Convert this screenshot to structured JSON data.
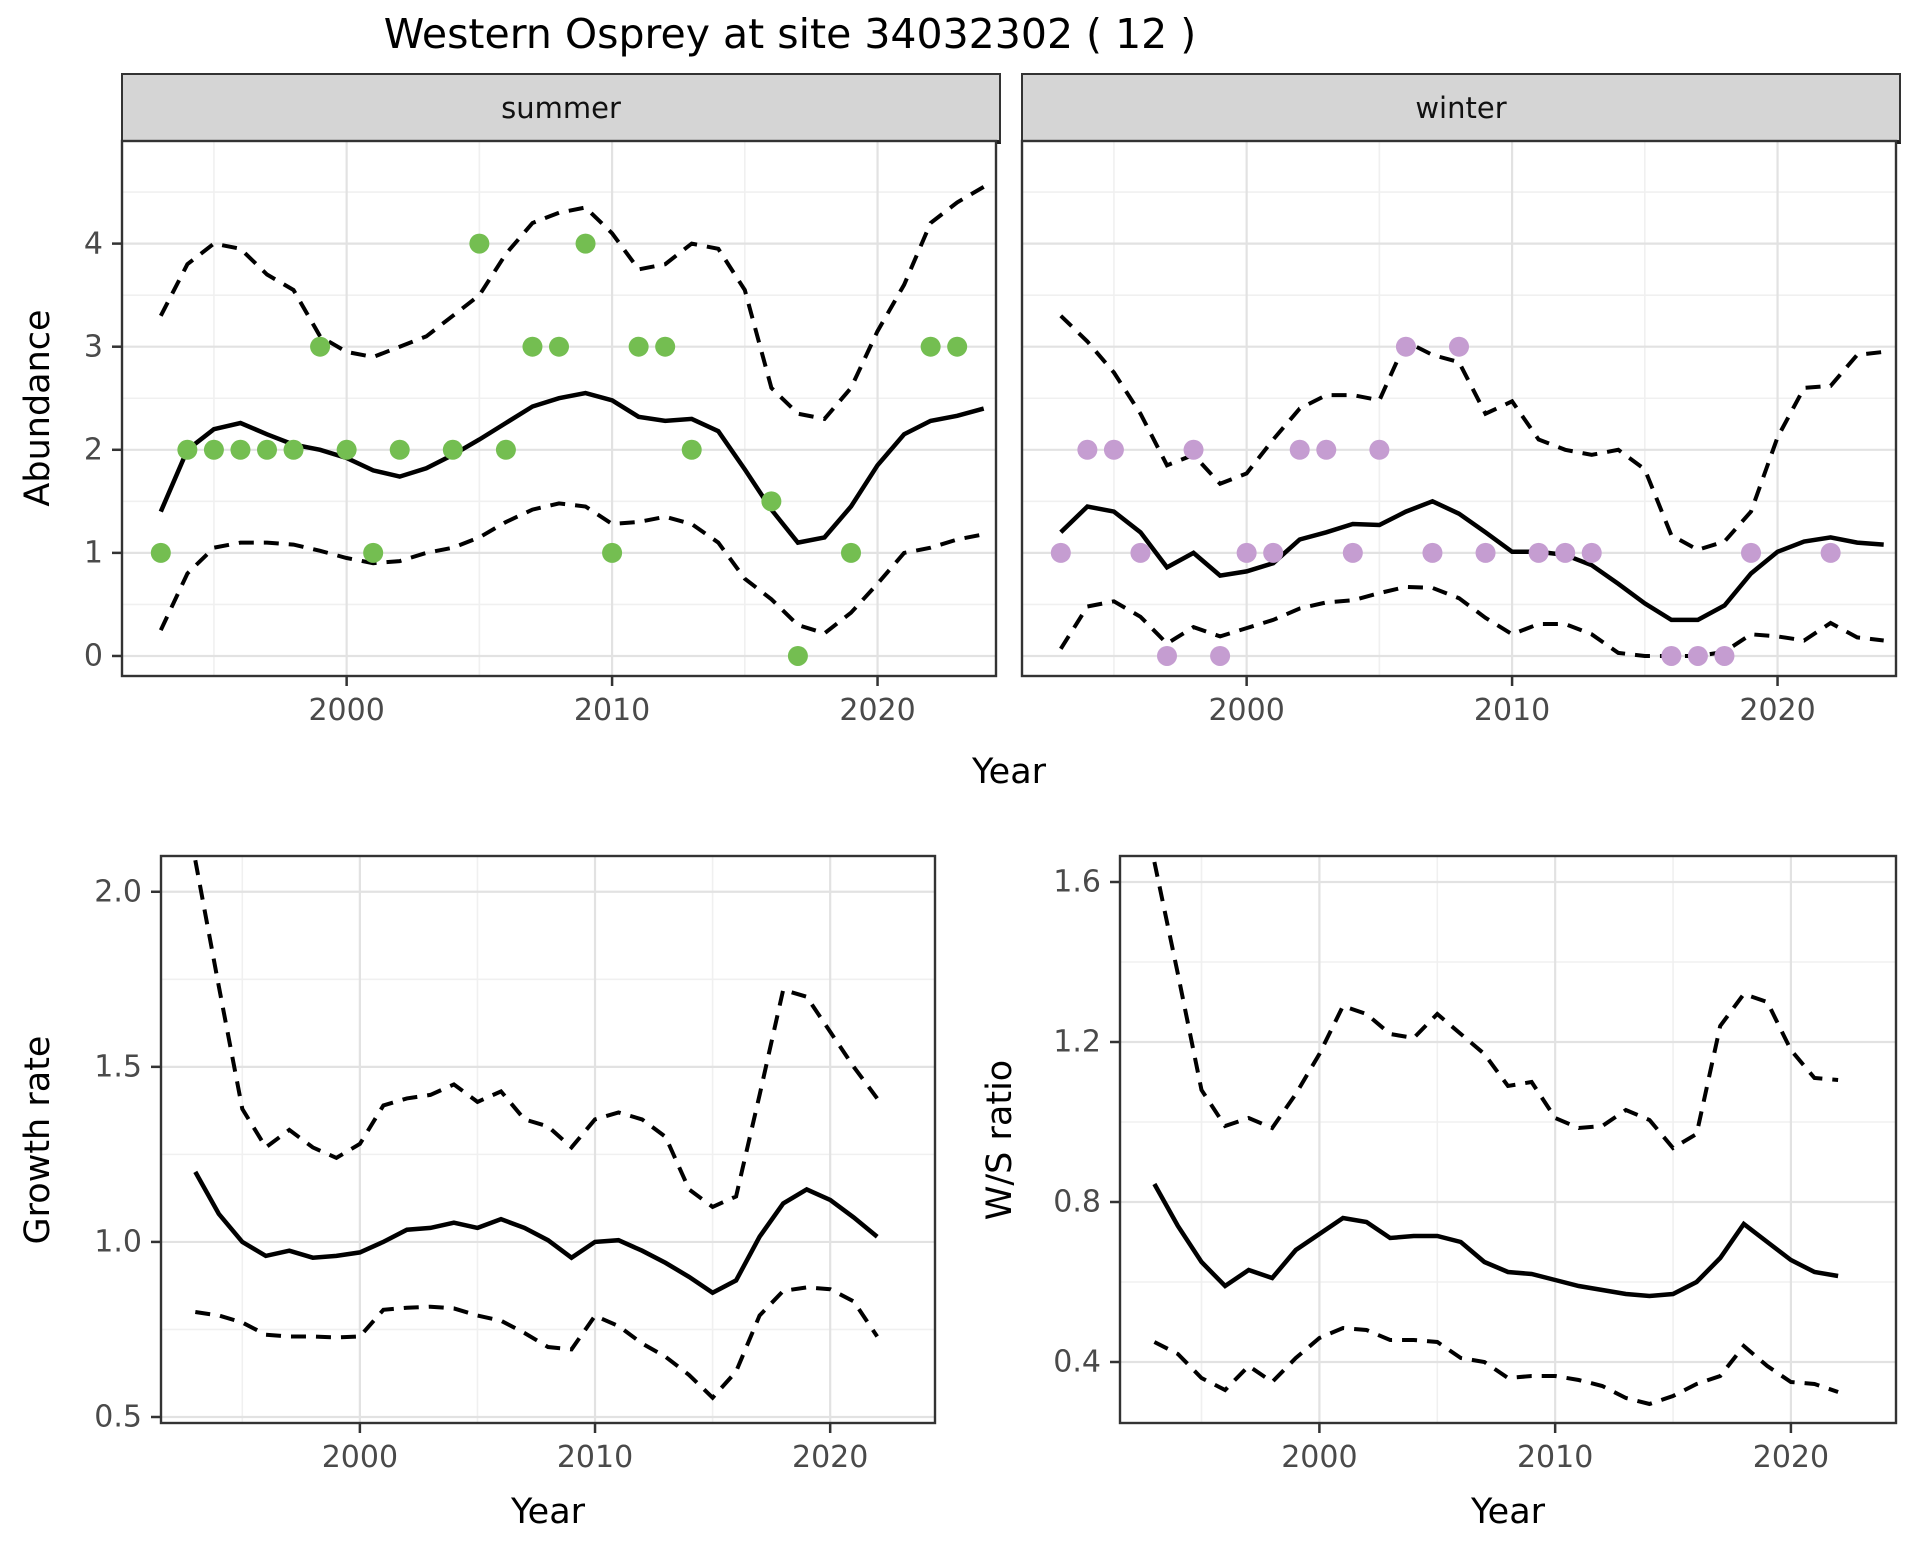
{
  "title": "Western Osprey at site 34032302 ( 12 )",
  "axis_titles": {
    "abundance": "Abundance",
    "year": "Year",
    "growth": "Growth rate",
    "ws": "W/S ratio"
  },
  "facets": {
    "summer_label": "summer",
    "winter_label": "winter"
  },
  "colors": {
    "summer_dot": "#74be51",
    "winter_dot": "#c59dd1",
    "line": "#000000",
    "strip_bg": "#d5d5d5",
    "panel_border": "#333333",
    "grid_major": "#e2e2e2",
    "grid_minor": "#f0f0f0",
    "tick_text": "#4a4a4a"
  },
  "legend": "none",
  "chart_data": [
    {
      "id": "abundance-summer",
      "type": "line",
      "facet_label": "summer",
      "ylabel": "Abundance",
      "xlabel": "Year",
      "xlim": [
        1991.5,
        2024.5
      ],
      "ylim": [
        -0.204,
        5.005
      ],
      "xticks": [
        2000,
        2010,
        2020
      ],
      "xtick_labels": [
        "2000",
        "2010",
        "2020"
      ],
      "xminor": [
        1995,
        2005,
        2015
      ],
      "yticks": [
        0,
        1,
        2,
        3,
        4
      ],
      "ytick_labels": [
        "0",
        "1",
        "2",
        "3",
        "4"
      ],
      "yminor": [
        0.5,
        1.5,
        2.5,
        3.5,
        4.5
      ],
      "grid": true,
      "x": [
        1993,
        1994,
        1995,
        1996,
        1997,
        1998,
        1999,
        2000,
        2001,
        2002,
        2003,
        2004,
        2005,
        2006,
        2007,
        2008,
        2009,
        2010,
        2011,
        2012,
        2013,
        2014,
        2015,
        2016,
        2017,
        2018,
        2019,
        2020,
        2021,
        2022,
        2023,
        2024
      ],
      "series": [
        {
          "name": "mean",
          "style": "solid",
          "values": [
            1.4,
            2.0,
            2.2,
            2.26,
            2.15,
            2.05,
            2.0,
            1.92,
            1.8,
            1.74,
            1.82,
            1.95,
            2.1,
            2.26,
            2.42,
            2.5,
            2.55,
            2.48,
            2.32,
            2.28,
            2.3,
            2.18,
            1.81,
            1.42,
            1.1,
            1.15,
            1.45,
            1.85,
            2.15,
            2.28,
            2.33,
            2.4
          ]
        },
        {
          "name": "upper_ci",
          "style": "dashed",
          "values": [
            3.3,
            3.8,
            4.0,
            3.95,
            3.7,
            3.55,
            3.1,
            2.95,
            2.9,
            3.0,
            3.1,
            3.3,
            3.5,
            3.9,
            4.2,
            4.3,
            4.35,
            4.1,
            3.75,
            3.8,
            4.0,
            3.95,
            3.55,
            2.6,
            2.35,
            2.3,
            2.6,
            3.15,
            3.6,
            4.2,
            4.4,
            4.55
          ]
        },
        {
          "name": "lower_ci",
          "style": "dashed",
          "values": [
            0.25,
            0.8,
            1.05,
            1.1,
            1.1,
            1.08,
            1.02,
            0.95,
            0.9,
            0.92,
            1.0,
            1.05,
            1.15,
            1.3,
            1.42,
            1.48,
            1.45,
            1.28,
            1.3,
            1.35,
            1.28,
            1.1,
            0.75,
            0.55,
            0.3,
            0.22,
            0.42,
            0.7,
            1.0,
            1.05,
            1.13,
            1.18
          ]
        }
      ],
      "points": {
        "name": "summer-observations",
        "color_key": "summer_dot",
        "x": [
          1993,
          1994,
          1995,
          1996,
          1997,
          1998,
          1999,
          2000,
          2001,
          2002,
          2004,
          2005,
          2006,
          2007,
          2008,
          2009,
          2010,
          2011,
          2012,
          2013,
          2016,
          2017,
          2019,
          2022,
          2023
        ],
        "y": [
          1,
          2,
          2,
          2,
          2,
          2,
          3,
          2,
          1,
          2,
          2,
          4,
          2,
          3,
          3,
          4,
          1,
          3,
          3,
          2,
          1.5,
          0,
          1,
          3,
          3
        ]
      }
    },
    {
      "id": "abundance-winter",
      "type": "line",
      "facet_label": "winter",
      "ylabel": "Abundance",
      "xlabel": "Year",
      "xlim": [
        1991.5,
        2024.5
      ],
      "ylim": [
        -0.204,
        5.005
      ],
      "xticks": [
        2000,
        2010,
        2020
      ],
      "xtick_labels": [
        "2000",
        "2010",
        "2020"
      ],
      "xminor": [
        1995,
        2005,
        2015
      ],
      "yticks": [
        0,
        1,
        2,
        3,
        4
      ],
      "ytick_labels": [
        "0",
        "1",
        "2",
        "3",
        "4"
      ],
      "yminor": [
        0.5,
        1.5,
        2.5,
        3.5,
        4.5
      ],
      "grid": true,
      "x": [
        1993,
        1994,
        1995,
        1996,
        1997,
        1998,
        1999,
        2000,
        2001,
        2002,
        2003,
        2004,
        2005,
        2006,
        2007,
        2008,
        2009,
        2010,
        2011,
        2012,
        2013,
        2014,
        2015,
        2016,
        2017,
        2018,
        2019,
        2020,
        2021,
        2022,
        2023,
        2024
      ],
      "series": [
        {
          "name": "mean",
          "style": "solid",
          "values": [
            1.2,
            1.45,
            1.4,
            1.2,
            0.86,
            1.0,
            0.78,
            0.82,
            0.9,
            1.13,
            1.2,
            1.28,
            1.27,
            1.4,
            1.5,
            1.38,
            1.2,
            1.01,
            1.01,
            0.98,
            0.88,
            0.7,
            0.51,
            0.35,
            0.35,
            0.49,
            0.8,
            1.01,
            1.11,
            1.15,
            1.1,
            1.08
          ]
        },
        {
          "name": "upper_ci",
          "style": "dashed",
          "values": [
            3.3,
            3.05,
            2.75,
            2.35,
            1.85,
            1.95,
            1.67,
            1.77,
            2.1,
            2.4,
            2.53,
            2.53,
            2.48,
            3.05,
            2.92,
            2.85,
            2.35,
            2.47,
            2.1,
            2.0,
            1.95,
            2.0,
            1.81,
            1.17,
            1.03,
            1.11,
            1.4,
            2.12,
            2.6,
            2.62,
            2.92,
            2.95
          ]
        },
        {
          "name": "lower_ci",
          "style": "dashed",
          "values": [
            0.07,
            0.48,
            0.53,
            0.38,
            0.12,
            0.28,
            0.19,
            0.27,
            0.35,
            0.46,
            0.52,
            0.54,
            0.61,
            0.67,
            0.66,
            0.56,
            0.37,
            0.21,
            0.31,
            0.31,
            0.21,
            0.03,
            0.0,
            0.0,
            0.0,
            0.04,
            0.21,
            0.19,
            0.15,
            0.32,
            0.18,
            0.15
          ]
        }
      ],
      "points": {
        "name": "winter-observations",
        "color_key": "winter_dot",
        "x": [
          1993,
          1994,
          1995,
          1996,
          1997,
          1998,
          1999,
          2000,
          2001,
          2002,
          2003,
          2004,
          2005,
          2006,
          2007,
          2008,
          2009,
          2011,
          2012,
          2013,
          2016,
          2017,
          2018,
          2019,
          2022
        ],
        "y": [
          1,
          2,
          2,
          1,
          0,
          2,
          0,
          1,
          1,
          2,
          2,
          1,
          2,
          3,
          1,
          3,
          1,
          1,
          1,
          1,
          0,
          0,
          0,
          1,
          1
        ]
      }
    },
    {
      "id": "growth-rate",
      "type": "line",
      "facet_label": "",
      "ylabel": "Growth rate",
      "xlabel": "Year",
      "xlim": [
        1991.5,
        2024.5
      ],
      "ylim": [
        0.48,
        2.105
      ],
      "xticks": [
        2000,
        2010,
        2020
      ],
      "xtick_labels": [
        "2000",
        "2010",
        "2020"
      ],
      "xminor": [
        1995,
        2005,
        2015
      ],
      "yticks": [
        0.5,
        1.0,
        1.5,
        2.0
      ],
      "ytick_labels": [
        "0.5",
        "1.0",
        "1.5",
        "2.0"
      ],
      "yminor": [
        0.75,
        1.25,
        1.75
      ],
      "grid": true,
      "x": [
        1993,
        1994,
        1995,
        1996,
        1997,
        1998,
        1999,
        2000,
        2001,
        2002,
        2003,
        2004,
        2005,
        2006,
        2007,
        2008,
        2009,
        2010,
        2011,
        2012,
        2013,
        2014,
        2015,
        2016,
        2017,
        2018,
        2019,
        2020,
        2021,
        2022
      ],
      "series": [
        {
          "name": "mean",
          "style": "solid",
          "values": [
            1.2,
            1.08,
            1.0,
            0.96,
            0.975,
            0.955,
            0.96,
            0.97,
            1.0,
            1.035,
            1.04,
            1.055,
            1.04,
            1.065,
            1.04,
            1.005,
            0.955,
            1.0,
            1.005,
            0.975,
            0.94,
            0.9,
            0.855,
            0.89,
            1.015,
            1.11,
            1.15,
            1.12,
            1.07,
            1.015
          ]
        },
        {
          "name": "upper_ci",
          "style": "dashed",
          "values": [
            2.09,
            1.73,
            1.38,
            1.27,
            1.32,
            1.27,
            1.24,
            1.28,
            1.39,
            1.41,
            1.42,
            1.45,
            1.4,
            1.43,
            1.35,
            1.33,
            1.27,
            1.35,
            1.37,
            1.35,
            1.3,
            1.15,
            1.1,
            1.13,
            1.42,
            1.72,
            1.7,
            1.6,
            1.5,
            1.41
          ]
        },
        {
          "name": "lower_ci",
          "style": "dashed",
          "values": [
            0.8,
            0.79,
            0.77,
            0.735,
            0.73,
            0.73,
            0.727,
            0.73,
            0.806,
            0.812,
            0.815,
            0.81,
            0.79,
            0.775,
            0.74,
            0.7,
            0.693,
            0.789,
            0.76,
            0.71,
            0.672,
            0.62,
            0.555,
            0.63,
            0.79,
            0.86,
            0.87,
            0.865,
            0.83,
            0.73
          ]
        }
      ],
      "points": null
    },
    {
      "id": "ws-ratio",
      "type": "line",
      "facet_label": "",
      "ylabel": "W/S ratio",
      "xlabel": "Year",
      "xlim": [
        1991.5,
        2024.5
      ],
      "ylim": [
        0.245,
        1.6675
      ],
      "xticks": [
        2000,
        2010,
        2020
      ],
      "xtick_labels": [
        "2000",
        "2010",
        "2020"
      ],
      "xminor": [
        1995,
        2005,
        2015
      ],
      "yticks": [
        0.4,
        0.8,
        1.2,
        1.6
      ],
      "ytick_labels": [
        "0.4",
        "0.8",
        "1.2",
        "1.6"
      ],
      "yminor": [
        0.6,
        1.0,
        1.4
      ],
      "grid": true,
      "x": [
        1993,
        1994,
        1995,
        1996,
        1997,
        1998,
        1999,
        2000,
        2001,
        2002,
        2003,
        2004,
        2005,
        2006,
        2007,
        2008,
        2009,
        2010,
        2011,
        2012,
        2013,
        2014,
        2015,
        2016,
        2017,
        2018,
        2019,
        2020,
        2021,
        2022
      ],
      "series": [
        {
          "name": "mean",
          "style": "solid",
          "values": [
            0.845,
            0.74,
            0.65,
            0.59,
            0.63,
            0.61,
            0.68,
            0.72,
            0.76,
            0.75,
            0.71,
            0.715,
            0.715,
            0.7,
            0.65,
            0.625,
            0.62,
            0.605,
            0.59,
            0.58,
            0.57,
            0.565,
            0.57,
            0.6,
            0.66,
            0.745,
            0.7,
            0.655,
            0.625,
            0.615
          ]
        },
        {
          "name": "upper_ci",
          "style": "dashed",
          "values": [
            1.65,
            1.37,
            1.08,
            0.99,
            1.01,
            0.985,
            1.07,
            1.17,
            1.29,
            1.27,
            1.22,
            1.21,
            1.27,
            1.22,
            1.17,
            1.09,
            1.1,
            1.01,
            0.985,
            0.99,
            1.03,
            1.005,
            0.935,
            0.97,
            1.24,
            1.32,
            1.3,
            1.18,
            1.11,
            1.105
          ]
        },
        {
          "name": "lower_ci",
          "style": "dashed",
          "values": [
            0.45,
            0.42,
            0.36,
            0.33,
            0.39,
            0.35,
            0.41,
            0.46,
            0.485,
            0.48,
            0.455,
            0.455,
            0.45,
            0.41,
            0.4,
            0.36,
            0.365,
            0.365,
            0.355,
            0.34,
            0.31,
            0.295,
            0.315,
            0.345,
            0.365,
            0.44,
            0.39,
            0.35,
            0.345,
            0.325
          ]
        }
      ],
      "points": null
    }
  ]
}
